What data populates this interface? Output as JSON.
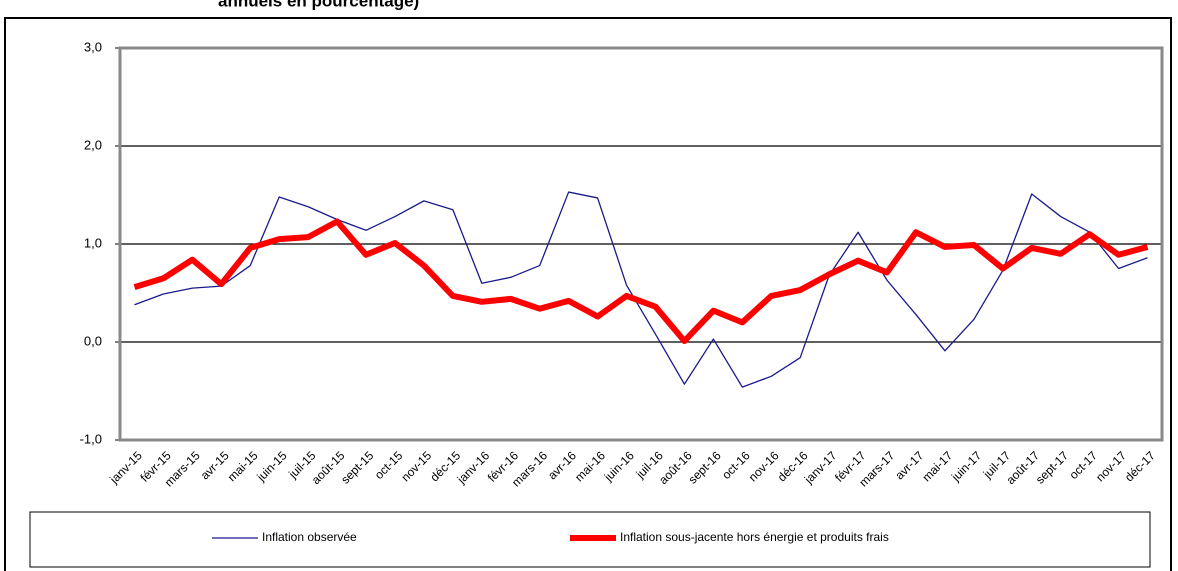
{
  "chart_data": {
    "type": "line",
    "title": "annuels en pourcentage)",
    "categories": [
      "janv-15",
      "févr-15",
      "mars-15",
      "avr-15",
      "mai-15",
      "juin-15",
      "juil-15",
      "août-15",
      "sept-15",
      "oct-15",
      "nov-15",
      "déc-15",
      "janv-16",
      "févr-16",
      "mars-16",
      "avr-16",
      "mai-16",
      "juin-16",
      "juil-16",
      "août-16",
      "sept-16",
      "oct-16",
      "nov-16",
      "déc-16",
      "janv-17",
      "févr-17",
      "mars-17",
      "avr-17",
      "mai-17",
      "juin-17",
      "juil-17",
      "août-17",
      "sept-17",
      "oct-17",
      "nov-17",
      "déc-17"
    ],
    "series": [
      {
        "name": "Inflation observée",
        "color": "#1a1a8c",
        "width": 1.3,
        "values": [
          0.38,
          0.49,
          0.55,
          0.57,
          0.78,
          1.48,
          1.38,
          1.25,
          1.14,
          1.28,
          1.44,
          1.35,
          0.6,
          0.66,
          0.78,
          1.53,
          1.47,
          0.58,
          0.08,
          -0.43,
          0.03,
          -0.46,
          -0.35,
          -0.16,
          0.68,
          1.12,
          0.63,
          0.28,
          -0.09,
          0.23,
          0.73,
          1.51,
          1.28,
          1.12,
          0.75,
          0.86
        ]
      },
      {
        "name": "Inflation sous-jacente hors énergie et produits frais",
        "color": "#ff0000",
        "width": 6,
        "values": [
          0.56,
          0.65,
          0.84,
          0.59,
          0.96,
          1.05,
          1.07,
          1.23,
          0.89,
          1.01,
          0.78,
          0.47,
          0.41,
          0.44,
          0.34,
          0.42,
          0.26,
          0.47,
          0.36,
          0.01,
          0.32,
          0.2,
          0.47,
          0.53,
          0.69,
          0.83,
          0.71,
          1.12,
          0.97,
          0.99,
          0.75,
          0.96,
          0.9,
          1.1,
          0.89,
          0.97
        ]
      }
    ],
    "ylim": [
      -1,
      3
    ],
    "yticks": [
      {
        "value": -1,
        "label": "-1,0"
      },
      {
        "value": 0,
        "label": "0,0"
      },
      {
        "value": 1,
        "label": "1,0"
      },
      {
        "value": 2,
        "label": "2,0"
      },
      {
        "value": 3,
        "label": "3,0"
      }
    ],
    "grid": true
  }
}
